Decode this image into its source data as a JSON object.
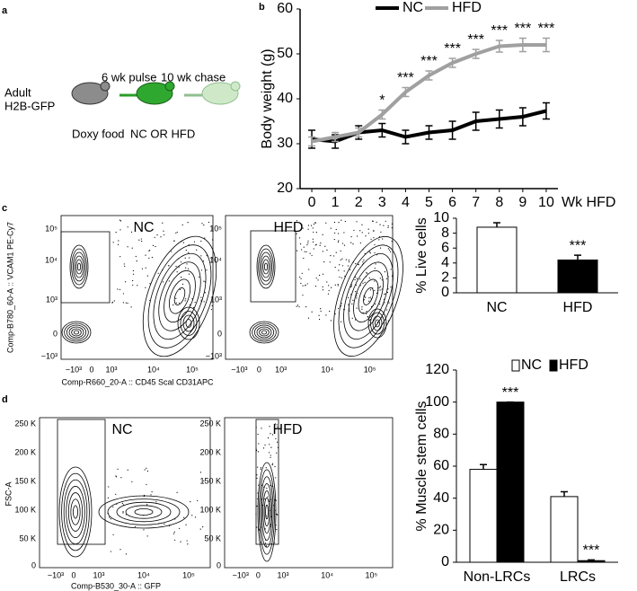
{
  "panels": [
    "a",
    "b",
    "c",
    "d"
  ],
  "diagram": {
    "mouse_label": [
      "Adult",
      "H2B-GFP"
    ],
    "pulse": "6 wk pulse",
    "chase": "10 wk chase",
    "food": "Doxy food",
    "diet": "NC OR HFD"
  },
  "flow_plots": {
    "c": {
      "titles": [
        "NC",
        "HFD"
      ],
      "y_label": "Comp-B780_60-A :: VCAM1 PE-Cy7",
      "x_label": "Comp-R660_20-A :: CD45 Scal CD31APC",
      "y_ticks": [
        "10⁵",
        "10⁴",
        "10³",
        "0",
        "−10³"
      ],
      "x_ticks": [
        "−10³",
        "0",
        "10³",
        "10⁴",
        "10⁵"
      ]
    },
    "d": {
      "titles": [
        "NC",
        "HFD"
      ],
      "y_label": "FSC-A",
      "x_label": "Comp-B530_30-A :: GFP",
      "y_ticks": [
        "250 K",
        "200 K",
        "150 K",
        "100 K",
        "50 K",
        "0"
      ],
      "x_ticks": [
        "−10³",
        "0",
        "10³",
        "10⁴",
        "10⁵"
      ]
    }
  },
  "chart_data": [
    {
      "type": "line",
      "y_label": "Body weight (g)",
      "x_label": "Wk HFD",
      "x": [
        0,
        1,
        2,
        3,
        4,
        5,
        6,
        7,
        8,
        9,
        10
      ],
      "xlim": [
        -0.5,
        10.5
      ],
      "xticks": [
        0,
        1,
        2,
        3,
        4,
        5,
        6,
        7,
        8,
        9,
        10
      ],
      "ylim": [
        20,
        60
      ],
      "yticks": [
        20,
        30,
        40,
        50,
        60
      ],
      "series": [
        {
          "name": "NC",
          "color": "#000000",
          "values": [
            31,
            30.5,
            32.5,
            33,
            31.5,
            32.5,
            33,
            35,
            35.5,
            36,
            37.3
          ],
          "errors": [
            2,
            1.5,
            1.5,
            1.5,
            1.5,
            1.5,
            2,
            2,
            2,
            2,
            1.8
          ]
        },
        {
          "name": "HFD",
          "color": "#a0a0a0",
          "values": [
            30.5,
            31.5,
            32.5,
            36.5,
            41.5,
            45.2,
            48,
            50,
            51.7,
            52,
            52
          ],
          "errors": [
            1,
            1,
            1,
            1,
            1,
            1,
            1,
            1,
            1.3,
            1.5,
            1.5
          ],
          "annotations": [
            null,
            null,
            null,
            "*",
            "***",
            "***",
            "***",
            "***",
            "***",
            "***",
            "***"
          ]
        }
      ]
    },
    {
      "type": "bar",
      "y_label": "% Live cells",
      "categories": [
        "NC",
        "HFD"
      ],
      "values": [
        8.8,
        4.4
      ],
      "errors": [
        0.6,
        0.65
      ],
      "colors": [
        "#ffffff",
        "#000000"
      ],
      "annotations": [
        null,
        "***"
      ],
      "ylim": [
        0,
        10
      ],
      "yticks": [
        0,
        2,
        4,
        6,
        8,
        10
      ]
    },
    {
      "type": "bar",
      "y_label": "% Muscle stem cells",
      "categories": [
        "Non-LRCs",
        "LRCs"
      ],
      "ylim": [
        0,
        120
      ],
      "yticks": [
        0,
        20,
        40,
        60,
        80,
        100,
        120
      ],
      "series": [
        {
          "name": "NC",
          "color": "#ffffff",
          "values": [
            58,
            41
          ],
          "errors": [
            3,
            3
          ],
          "annotations": [
            null,
            null
          ]
        },
        {
          "name": "HFD",
          "color": "#000000",
          "values": [
            100,
            1
          ],
          "errors": [
            0,
            0.5
          ],
          "annotations": [
            "***",
            "***"
          ]
        }
      ]
    }
  ]
}
